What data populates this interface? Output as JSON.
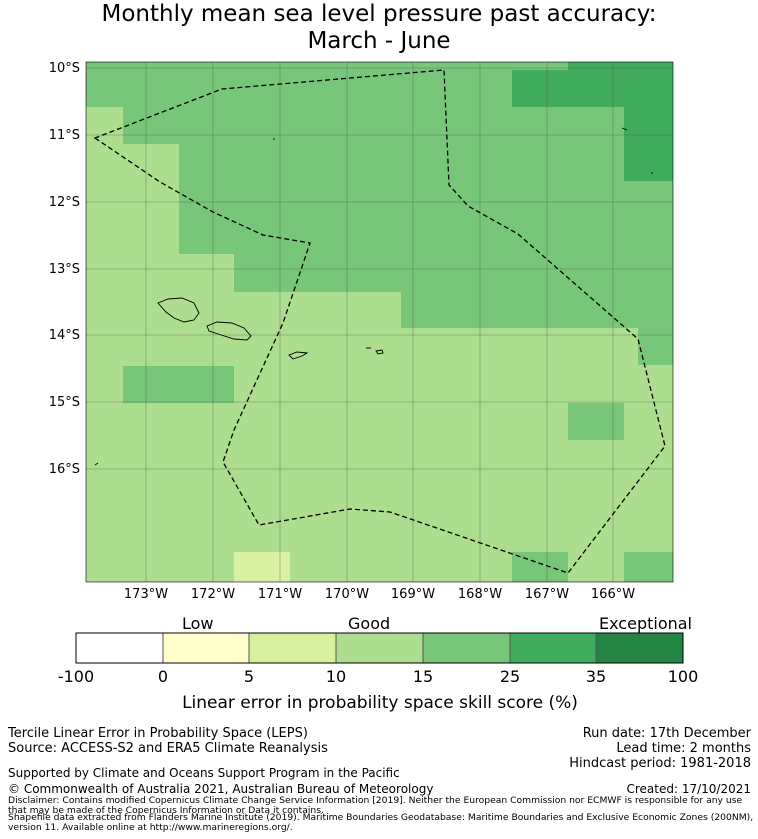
{
  "title": {
    "line1": "Monthly mean sea level pressure past accuracy:",
    "line2": "March - June"
  },
  "map": {
    "lat_labels": [
      "10°S",
      "11°S",
      "12°S",
      "13°S",
      "14°S",
      "15°S",
      "16°S"
    ],
    "lon_labels": [
      "173°W",
      "172°W",
      "171°W",
      "170°W",
      "169°W",
      "168°W",
      "167°W",
      "166°W"
    ]
  },
  "colorbar": {
    "categories": [
      "Low",
      "Good",
      "Exceptional"
    ],
    "ticks": [
      "-100",
      "0",
      "5",
      "10",
      "15",
      "25",
      "35",
      "100"
    ],
    "colors": [
      "#ffffff",
      "#ffffcc",
      "#d9f0a3",
      "#addd8e",
      "#78c679",
      "#41ab5d",
      "#238443"
    ],
    "label": "Linear error in probability space skill score (%)"
  },
  "info_left": {
    "line1": "Tercile Linear Error in Probability Space (LEPS)",
    "line2": "Source: ACCESS-S2 and ERA5 Climate Reanalysis",
    "line3": "Supported by Climate and Oceans Support Program in the Pacific",
    "line4": "© Commonwealth of Australia 2021, Australian Bureau of Meteorology"
  },
  "info_right": {
    "run_date": "Run date: 17th December",
    "lead_time": "Lead time: 2 months",
    "hindcast": "Hindcast period: 1981-2018",
    "created": "Created: 17/10/2021"
  },
  "disclaimer": {
    "line1": "Disclaimer: Contains modified Copernicus Climate Change Service Information [2019]. Neither the European Commission nor ECMWF is responsible for any use that may be made of the Copernicus Information or Data it contains.",
    "line2": "Shapefile data extracted from Flanders Marine Institute (2019). Maritime Boundaries Geodatabase: Maritime Boundaries and Exclusive Economic Zones (200NM), version 11. Available online at http://www.marineregions.org/."
  }
}
